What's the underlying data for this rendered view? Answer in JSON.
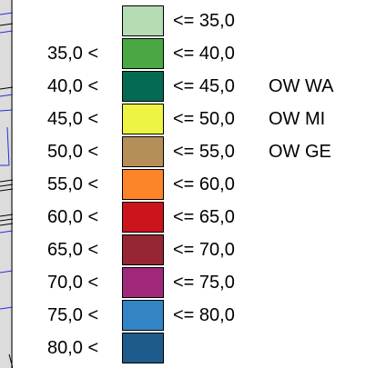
{
  "legend": {
    "classes": [
      {
        "lower": "",
        "upper": "<= 35,0",
        "color": "#b6dcb4",
        "label": ""
      },
      {
        "lower": "35,0 <",
        "upper": "<= 40,0",
        "color": "#4aa843",
        "label": ""
      },
      {
        "lower": "40,0 <",
        "upper": "<= 45,0",
        "color": "#046b52",
        "label": "OW WA"
      },
      {
        "lower": "45,0 <",
        "upper": "<= 50,0",
        "color": "#eef444",
        "label": "OW MI"
      },
      {
        "lower": "50,0 <",
        "upper": "<= 55,0",
        "color": "#b58e58",
        "label": "OW GE"
      },
      {
        "lower": "55,0 <",
        "upper": "<= 60,0",
        "color": "#fd8428",
        "label": ""
      },
      {
        "lower": "60,0 <",
        "upper": "<= 65,0",
        "color": "#cc141d",
        "label": ""
      },
      {
        "lower": "65,0 <",
        "upper": "<= 70,0",
        "color": "#962631",
        "label": ""
      },
      {
        "lower": "70,0 <",
        "upper": "<= 75,0",
        "color": "#a0287a",
        "label": ""
      },
      {
        "lower": "75,0 <",
        "upper": "<= 80,0",
        "color": "#3384c4",
        "label": ""
      },
      {
        "lower": "80,0 <",
        "upper": "",
        "color": "#1d5b8c",
        "label": ""
      }
    ]
  }
}
